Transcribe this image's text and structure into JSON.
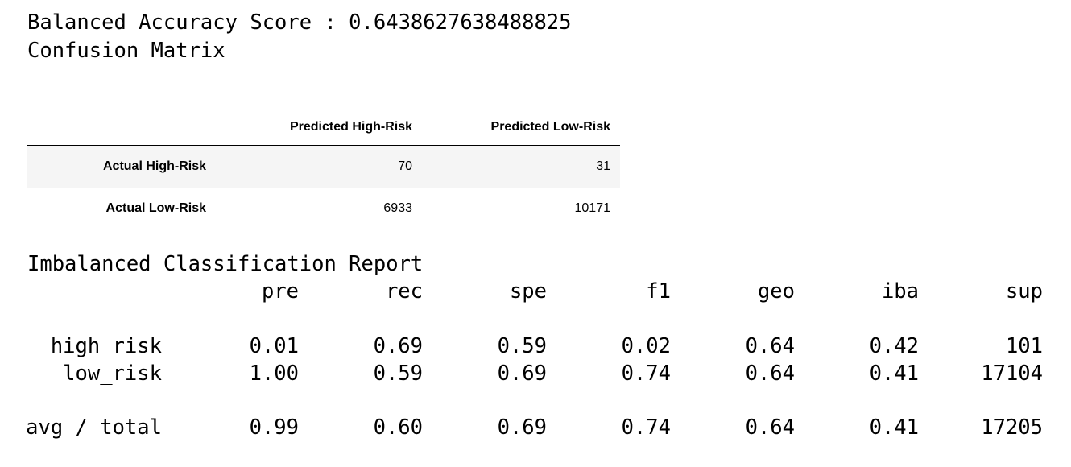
{
  "score_line": "Balanced Accuracy Score : 0.6438627638488825",
  "matrix_title": "Confusion Matrix",
  "matrix": {
    "columns": [
      "Predicted High-Risk",
      "Predicted Low-Risk"
    ],
    "rows": [
      {
        "label": "Actual High-Risk",
        "values": [
          70,
          31
        ]
      },
      {
        "label": "Actual Low-Risk",
        "values": [
          6933,
          10171
        ]
      }
    ]
  },
  "report": {
    "title": "Imbalanced Classification Report",
    "headers": [
      "pre",
      "rec",
      "spe",
      "f1",
      "geo",
      "iba",
      "sup"
    ],
    "rows": [
      {
        "label": "high_risk",
        "values": [
          "0.01",
          "0.69",
          "0.59",
          "0.02",
          "0.64",
          "0.42",
          "101"
        ]
      },
      {
        "label": "low_risk",
        "values": [
          "1.00",
          "0.59",
          "0.69",
          "0.74",
          "0.64",
          "0.41",
          "17104"
        ]
      },
      {
        "label": "avg / total",
        "values": [
          "0.99",
          "0.60",
          "0.69",
          "0.74",
          "0.64",
          "0.41",
          "17205"
        ]
      }
    ]
  }
}
